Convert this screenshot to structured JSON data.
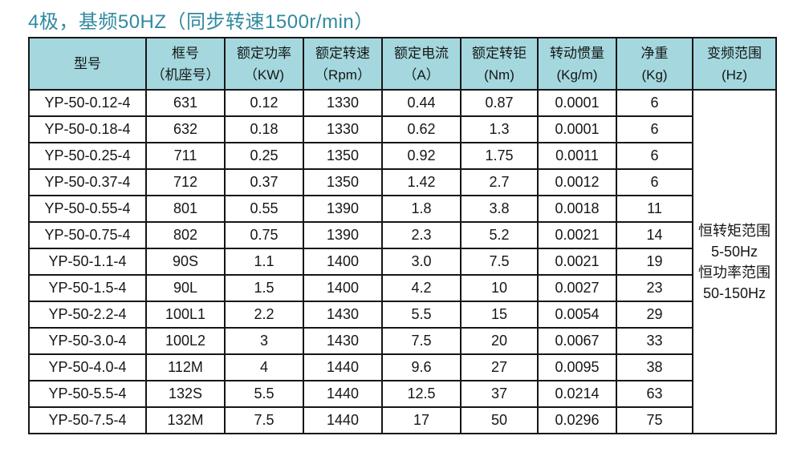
{
  "page": {
    "title": "4极，基频50HZ（同步转速1500r/min）",
    "colors": {
      "title_text": "#2f8aa0",
      "header_background": "#a4d8de",
      "border": "#161616",
      "body_text": "#161616",
      "page_background": "#ffffff"
    }
  },
  "table": {
    "headers": [
      {
        "line1": "型号",
        "line2": ""
      },
      {
        "line1": "框号",
        "line2": "（机座号）"
      },
      {
        "line1": "额定功率",
        "line2": "（KW)"
      },
      {
        "line1": "额定转速",
        "line2": "（Rpm）"
      },
      {
        "line1": "额定电流",
        "line2": "（A）"
      },
      {
        "line1": "额定转钜",
        "line2": "(Nm)"
      },
      {
        "line1": "转动惯量",
        "line2": "(Kg/m)"
      },
      {
        "line1": "净重",
        "line2": "(Kg)"
      },
      {
        "line1": "变频范围",
        "line2": "(Hz)"
      }
    ],
    "rows": [
      {
        "model": "YP-50-0.12-4",
        "frame": "631",
        "power": "0.12",
        "speed": "1330",
        "current": "0.44",
        "torque": "0.87",
        "inertia": "0.0001",
        "weight": "6"
      },
      {
        "model": "YP-50-0.18-4",
        "frame": "632",
        "power": "0.18",
        "speed": "1330",
        "current": "0.62",
        "torque": "1.3",
        "inertia": "0.0001",
        "weight": "6"
      },
      {
        "model": "YP-50-0.25-4",
        "frame": "711",
        "power": "0.25",
        "speed": "1350",
        "current": "0.92",
        "torque": "1.75",
        "inertia": "0.0011",
        "weight": "6"
      },
      {
        "model": "YP-50-0.37-4",
        "frame": "712",
        "power": "0.37",
        "speed": "1350",
        "current": "1.42",
        "torque": "2.7",
        "inertia": "0.0012",
        "weight": "6"
      },
      {
        "model": "YP-50-0.55-4",
        "frame": "801",
        "power": "0.55",
        "speed": "1390",
        "current": "1.8",
        "torque": "3.8",
        "inertia": "0.0018",
        "weight": "11"
      },
      {
        "model": "YP-50-0.75-4",
        "frame": "802",
        "power": "0.75",
        "speed": "1390",
        "current": "2.3",
        "torque": "5.2",
        "inertia": "0.0021",
        "weight": "14"
      },
      {
        "model": "YP-50-1.1-4",
        "frame": "90S",
        "power": "1.1",
        "speed": "1400",
        "current": "3.0",
        "torque": "7.5",
        "inertia": "0.0021",
        "weight": "19"
      },
      {
        "model": "YP-50-1.5-4",
        "frame": "90L",
        "power": "1.5",
        "speed": "1400",
        "current": "4.2",
        "torque": "10",
        "inertia": "0.0027",
        "weight": "23"
      },
      {
        "model": "YP-50-2.2-4",
        "frame": "100L1",
        "power": "2.2",
        "speed": "1430",
        "current": "5.5",
        "torque": "15",
        "inertia": "0.0054",
        "weight": "29"
      },
      {
        "model": "YP-50-3.0-4",
        "frame": "100L2",
        "power": "3",
        "speed": "1430",
        "current": "7.5",
        "torque": "20",
        "inertia": "0.0067",
        "weight": "33"
      },
      {
        "model": "YP-50-4.0-4",
        "frame": "112M",
        "power": "4",
        "speed": "1440",
        "current": "9.6",
        "torque": "27",
        "inertia": "0.0095",
        "weight": "38"
      },
      {
        "model": "YP-50-5.5-4",
        "frame": "132S",
        "power": "5.5",
        "speed": "1440",
        "current": "12.5",
        "torque": "37",
        "inertia": "0.0214",
        "weight": "63"
      },
      {
        "model": "YP-50-7.5-4",
        "frame": "132M",
        "power": "7.5",
        "speed": "1440",
        "current": "17",
        "torque": "50",
        "inertia": "0.0296",
        "weight": "75"
      }
    ],
    "freq_range": {
      "lines": [
        "恒转矩范围",
        "5-50Hz",
        "恒功率范围",
        "50-150Hz"
      ]
    }
  }
}
